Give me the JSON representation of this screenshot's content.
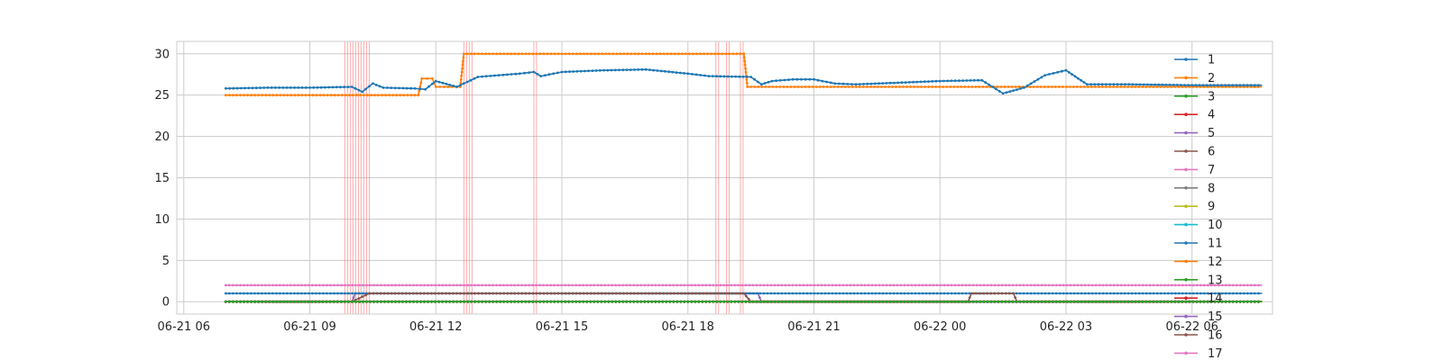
{
  "chart_data": {
    "type": "line",
    "title": "",
    "xlabel": "",
    "ylabel": "",
    "x_axis": {
      "type": "datetime",
      "range": [
        "2021-06-21 05:50",
        "2021-06-22 07:55"
      ],
      "ticks": [
        {
          "value": "2021-06-21 06:00",
          "label": "06-21 06"
        },
        {
          "value": "2021-06-21 09:00",
          "label": "06-21 09"
        },
        {
          "value": "2021-06-21 12:00",
          "label": "06-21 12"
        },
        {
          "value": "2021-06-21 15:00",
          "label": "06-21 15"
        },
        {
          "value": "2021-06-21 18:00",
          "label": "06-21 18"
        },
        {
          "value": "2021-06-21 21:00",
          "label": "06-21 21"
        },
        {
          "value": "2021-06-22 00:00",
          "label": "06-22 00"
        },
        {
          "value": "2021-06-22 03:00",
          "label": "06-22 03"
        },
        {
          "value": "2021-06-22 06:00",
          "label": "06-22 06"
        }
      ]
    },
    "y_axis": {
      "range": [
        -1.5,
        31.5
      ],
      "ticks": [
        {
          "value": 0,
          "label": "0"
        },
        {
          "value": 5,
          "label": "5"
        },
        {
          "value": 10,
          "label": "10"
        },
        {
          "value": 15,
          "label": "15"
        },
        {
          "value": 20,
          "label": "20"
        },
        {
          "value": 25,
          "label": "25"
        },
        {
          "value": 30,
          "label": "30"
        }
      ]
    },
    "grid": true,
    "legend_position": "right",
    "marker": "dot",
    "highlight_color": "#ff6b6b",
    "highlight_bands": [
      [
        "2021-06-21 09:50",
        "2021-06-21 10:25"
      ],
      [
        "2021-06-21 12:40",
        "2021-06-21 12:55"
      ],
      [
        "2021-06-21 14:20",
        "2021-06-21 14:25"
      ],
      [
        "2021-06-21 18:40",
        "2021-06-21 18:45"
      ],
      [
        "2021-06-21 18:55",
        "2021-06-21 19:00"
      ],
      [
        "2021-06-21 19:15",
        "2021-06-21 19:20"
      ]
    ],
    "series": [
      {
        "name": "1",
        "color": "#1f77b4",
        "points": [
          [
            "2021-06-21 07:00",
            25.8
          ],
          [
            "2021-06-21 08:00",
            25.9
          ],
          [
            "2021-06-21 09:00",
            25.9
          ],
          [
            "2021-06-21 10:00",
            26.0
          ],
          [
            "2021-06-21 10:15",
            25.4
          ],
          [
            "2021-06-21 10:30",
            26.4
          ],
          [
            "2021-06-21 10:45",
            25.9
          ],
          [
            "2021-06-21 11:30",
            25.8
          ],
          [
            "2021-06-21 11:45",
            25.7
          ],
          [
            "2021-06-21 12:00",
            26.7
          ],
          [
            "2021-06-21 12:30",
            26.0
          ],
          [
            "2021-06-21 13:00",
            27.2
          ],
          [
            "2021-06-21 13:30",
            27.4
          ],
          [
            "2021-06-21 14:00",
            27.6
          ],
          [
            "2021-06-21 14:20",
            27.8
          ],
          [
            "2021-06-21 14:30",
            27.3
          ],
          [
            "2021-06-21 15:00",
            27.8
          ],
          [
            "2021-06-21 16:00",
            28.0
          ],
          [
            "2021-06-21 17:00",
            28.1
          ],
          [
            "2021-06-21 18:00",
            27.6
          ],
          [
            "2021-06-21 18:30",
            27.3
          ],
          [
            "2021-06-21 19:30",
            27.2
          ],
          [
            "2021-06-21 19:45",
            26.3
          ],
          [
            "2021-06-21 20:00",
            26.7
          ],
          [
            "2021-06-21 20:30",
            26.9
          ],
          [
            "2021-06-21 21:00",
            26.9
          ],
          [
            "2021-06-21 21:30",
            26.4
          ],
          [
            "2021-06-21 22:00",
            26.3
          ],
          [
            "2021-06-21 23:00",
            26.5
          ],
          [
            "2021-06-22 00:00",
            26.7
          ],
          [
            "2021-06-22 01:00",
            26.8
          ],
          [
            "2021-06-22 01:30",
            25.2
          ],
          [
            "2021-06-22 02:00",
            25.9
          ],
          [
            "2021-06-22 02:30",
            27.4
          ],
          [
            "2021-06-22 03:00",
            28.0
          ],
          [
            "2021-06-22 03:30",
            26.3
          ],
          [
            "2021-06-22 04:30",
            26.3
          ],
          [
            "2021-06-22 06:00",
            26.2
          ],
          [
            "2021-06-22 07:40",
            26.2
          ]
        ]
      },
      {
        "name": "2",
        "color": "#ff7f0e",
        "points": [
          [
            "2021-06-21 07:00",
            25.0
          ],
          [
            "2021-06-21 11:35",
            25.0
          ],
          [
            "2021-06-21 11:40",
            27.0
          ],
          [
            "2021-06-21 11:55",
            27.0
          ],
          [
            "2021-06-21 12:00",
            26.0
          ],
          [
            "2021-06-21 12:35",
            26.0
          ],
          [
            "2021-06-21 12:40",
            30.0
          ],
          [
            "2021-06-21 19:20",
            30.0
          ],
          [
            "2021-06-21 19:25",
            26.0
          ],
          [
            "2021-06-22 07:40",
            26.0
          ]
        ]
      },
      {
        "name": "3",
        "color": "#2ca02c",
        "points": [
          [
            "2021-06-21 07:00",
            0.0
          ],
          [
            "2021-06-22 07:40",
            0.0
          ]
        ]
      },
      {
        "name": "4",
        "color": "#d62728",
        "points": [
          [
            "2021-06-21 07:00",
            0.0
          ],
          [
            "2021-06-22 07:40",
            0.0
          ]
        ]
      },
      {
        "name": "5",
        "color": "#9467bd",
        "points": [
          [
            "2021-06-21 07:00",
            0.0
          ],
          [
            "2021-06-22 07:40",
            0.0
          ]
        ]
      },
      {
        "name": "6",
        "color": "#8c564b",
        "points": [
          [
            "2021-06-21 07:00",
            0.0
          ],
          [
            "2021-06-21 10:00",
            0.0
          ],
          [
            "2021-06-21 10:25",
            1.0
          ],
          [
            "2021-06-21 19:20",
            1.0
          ],
          [
            "2021-06-21 19:30",
            0.0
          ],
          [
            "2021-06-22 00:40",
            0.0
          ],
          [
            "2021-06-22 00:45",
            1.0
          ],
          [
            "2021-06-22 01:45",
            1.0
          ],
          [
            "2021-06-22 01:50",
            0.0
          ],
          [
            "2021-06-22 07:40",
            0.0
          ]
        ]
      },
      {
        "name": "7",
        "color": "#e377c2",
        "points": [
          [
            "2021-06-21 07:00",
            2.0
          ],
          [
            "2021-06-22 07:40",
            2.0
          ]
        ]
      },
      {
        "name": "8",
        "color": "#7f7f7f",
        "points": [
          [
            "2021-06-21 07:00",
            0.0
          ],
          [
            "2021-06-22 07:40",
            0.0
          ]
        ]
      },
      {
        "name": "9",
        "color": "#bcbd22",
        "points": [
          [
            "2021-06-21 07:00",
            0.0
          ],
          [
            "2021-06-22 07:40",
            0.0
          ]
        ]
      },
      {
        "name": "10",
        "color": "#17becf",
        "points": [
          [
            "2021-06-21 07:00",
            0.0
          ],
          [
            "2021-06-22 07:40",
            0.0
          ]
        ]
      },
      {
        "name": "11",
        "color": "#1f77b4",
        "points": [
          [
            "2021-06-21 07:00",
            1.0
          ],
          [
            "2021-06-22 07:40",
            1.0
          ]
        ]
      },
      {
        "name": "12",
        "color": "#ff7f0e",
        "points": [
          [
            "2021-06-21 07:00",
            0.0
          ],
          [
            "2021-06-22 07:40",
            0.0
          ]
        ]
      },
      {
        "name": "13",
        "color": "#2ca02c",
        "points": [
          [
            "2021-06-21 07:00",
            0.0
          ],
          [
            "2021-06-22 07:40",
            0.0
          ]
        ]
      },
      {
        "name": "14",
        "color": "#d62728",
        "points": [
          [
            "2021-06-21 07:00",
            0.0
          ],
          [
            "2021-06-22 07:40",
            0.0
          ]
        ]
      },
      {
        "name": "15",
        "color": "#9467bd",
        "points": [
          [
            "2021-06-21 07:00",
            0.0
          ],
          [
            "2021-06-21 10:00",
            0.0
          ],
          [
            "2021-06-21 10:05",
            1.0
          ],
          [
            "2021-06-21 19:40",
            1.0
          ],
          [
            "2021-06-21 19:45",
            0.0
          ],
          [
            "2021-06-22 07:40",
            0.0
          ]
        ]
      },
      {
        "name": "16",
        "color": "#8c564b",
        "points": [
          [
            "2021-06-21 07:00",
            0.0
          ],
          [
            "2021-06-22 07:40",
            0.0
          ]
        ]
      },
      {
        "name": "17",
        "color": "#e377c2",
        "points": [
          [
            "2021-06-21 07:00",
            0.0
          ],
          [
            "2021-06-22 07:40",
            0.0
          ]
        ]
      }
    ]
  }
}
